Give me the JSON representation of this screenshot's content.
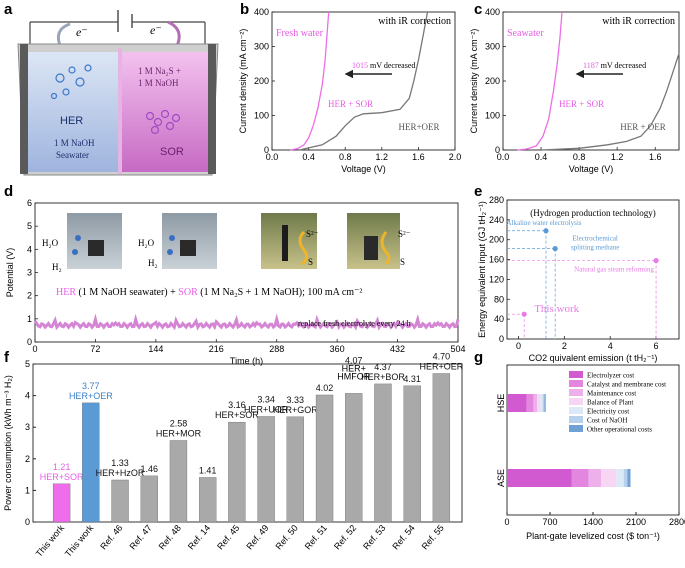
{
  "panel_labels": {
    "a": "a",
    "b": "b",
    "c": "c",
    "d": "d",
    "e": "e",
    "f": "f",
    "g": "g"
  },
  "panel_a": {
    "electron_left": "e⁻",
    "electron_right": "e⁻",
    "left_label": "HER",
    "left_sub1": "1 M NaOH",
    "left_sub2": "Seawater",
    "right_label": "SOR",
    "right_sub1": "1 M Na₂S +",
    "right_sub2": "1 M NaOH",
    "colors": {
      "left": "#b8c8e6",
      "right": "#d98fd6"
    }
  },
  "chart_data": [
    {
      "id": "b",
      "type": "line",
      "title": "",
      "annotation_top": "with iR correction",
      "legend": "Fresh water",
      "xlabel": "Voltage (V)",
      "ylabel": "Current density (mA cm⁻²)",
      "xlim": [
        0,
        2.0
      ],
      "ylim": [
        0,
        400
      ],
      "xticks": [
        "0.0",
        "0.4",
        "0.8",
        "1.2",
        "1.6",
        "2.0"
      ],
      "yticks": [
        "0",
        "100",
        "200",
        "300",
        "400"
      ],
      "arrow_text_value": "1015",
      "arrow_text_suffix": " mV decreased",
      "series": [
        {
          "name": "HER + SOR",
          "color": "#ee6de8",
          "x": [
            0.2,
            0.28,
            0.35,
            0.4,
            0.45,
            0.5,
            0.55,
            0.58,
            0.6,
            0.62
          ],
          "y": [
            0,
            4,
            15,
            35,
            70,
            120,
            190,
            260,
            330,
            400
          ]
        },
        {
          "name": "HER+OER",
          "color": "#777777",
          "x": [
            0.3,
            0.55,
            0.7,
            0.8,
            0.9,
            1.0,
            1.2,
            1.4,
            1.5,
            1.55,
            1.6,
            1.65,
            1.7
          ],
          "y": [
            0,
            15,
            40,
            70,
            95,
            105,
            108,
            118,
            150,
            200,
            260,
            330,
            400
          ]
        }
      ]
    },
    {
      "id": "c",
      "type": "line",
      "title": "",
      "annotation_top": "with iR correction",
      "legend": "Seawater",
      "xlabel": "Voltage (V)",
      "ylabel": "Current density (mA cm⁻²)",
      "xlim": [
        0,
        1.85
      ],
      "ylim": [
        0,
        400
      ],
      "xticks": [
        "0.0",
        "0.4",
        "0.8",
        "1.2",
        "1.6"
      ],
      "yticks": [
        "0",
        "100",
        "200",
        "300",
        "400"
      ],
      "arrow_text_value": "1187",
      "arrow_text_suffix": " mV decreased",
      "series": [
        {
          "name": "HER + SOR",
          "color": "#ee6de8",
          "x": [
            0.15,
            0.25,
            0.35,
            0.42,
            0.48,
            0.53,
            0.57,
            0.6,
            0.62
          ],
          "y": [
            0,
            3,
            12,
            40,
            90,
            170,
            250,
            330,
            400
          ]
        },
        {
          "name": "HER + OER",
          "color": "#777777",
          "x": [
            0.4,
            0.8,
            1.1,
            1.3,
            1.45,
            1.55,
            1.65,
            1.72,
            1.78,
            1.85
          ],
          "y": [
            0,
            5,
            15,
            25,
            40,
            70,
            120,
            170,
            220,
            280
          ]
        }
      ]
    },
    {
      "id": "d",
      "type": "line",
      "xlabel": "Time (h)",
      "ylabel": "Potential (V)",
      "xlim": [
        0,
        504
      ],
      "ylim": [
        0,
        6
      ],
      "xticks": [
        "0",
        "72",
        "144",
        "216",
        "288",
        "360",
        "432",
        "504"
      ],
      "yticks": [
        "0",
        "1",
        "2",
        "3",
        "4",
        "5",
        "6"
      ],
      "caption_her": "HER",
      "caption_her_detail": " (1 M NaOH seawater) + ",
      "caption_sor": "SOR",
      "caption_sor_detail": " (1 M Na₂S + 1 M NaOH); 100 mA cm⁻²",
      "note": "replace fresh electrolyte every 24 h",
      "photo_labels": {
        "h2o_1": "H₂O",
        "h2_1": "H₂",
        "h2o_2": "H₂O",
        "s2_1": "S²⁻",
        "s_1": "S",
        "s2_2": "S²⁻",
        "s_2": "S"
      },
      "series": [
        {
          "name": "potential",
          "color": "#d486d4",
          "level": 0.72
        }
      ]
    },
    {
      "id": "e",
      "type": "scatter",
      "title": "(Hydrogen production technology)",
      "xlabel": "CO2 quivalent emission (t tH₂⁻¹)",
      "ylabel": "Energy equivalent input (GJ tH₂⁻¹)",
      "xlim": [
        -0.5,
        7
      ],
      "ylim": [
        0,
        280
      ],
      "xticks": [
        "0",
        "2",
        "4",
        "6"
      ],
      "yticks": [
        "0",
        "40",
        "80",
        "120",
        "160",
        "200",
        "240",
        "280"
      ],
      "points": [
        {
          "label": "Alkaline water electrolysis",
          "x": 1.2,
          "y": 218,
          "color": "#5b9bd5"
        },
        {
          "label": "Electrochemical splitting methane",
          "x": 1.6,
          "y": 182,
          "color": "#5b9bd5"
        },
        {
          "label": "Natural gas steam reforming",
          "x": 6.0,
          "y": 158,
          "color": "#e97be6"
        },
        {
          "label": "This work",
          "x": 0.25,
          "y": 50,
          "color": "#e97be6"
        }
      ]
    },
    {
      "id": "f",
      "type": "bar",
      "ylabel": "Power consumption (kWh m⁻³ H₂)",
      "ylim": [
        0,
        5
      ],
      "yticks": [
        "0",
        "1",
        "2",
        "3",
        "4",
        "5"
      ],
      "categories": [
        "This work",
        "This work",
        "Ref. 46",
        "Ref. 47",
        "Ref. 48",
        "Ref. 14",
        "Ref. 45",
        "Ref. 49",
        "Ref. 50",
        "Ref. 51",
        "Ref. 52",
        "Ref. 53",
        "Ref. 54",
        "Ref. 55"
      ],
      "values": [
        1.21,
        3.77,
        1.33,
        1.46,
        2.58,
        1.41,
        3.16,
        3.34,
        3.33,
        4.02,
        4.07,
        4.37,
        4.31,
        4.7
      ],
      "value_labels": [
        "1.21",
        "3.77",
        "1.33",
        "1.46",
        "2.58",
        "1.41",
        "3.16",
        "3.34",
        "3.33",
        "4.02",
        "4.07",
        "4.37",
        "4.31",
        "4.70"
      ],
      "bar_labels": [
        "HER+SOR",
        "HER+OER",
        "HER+HzOR",
        "",
        "HER+MOR",
        "",
        "HER+SOR",
        "HER+UOR",
        "HER+GOR",
        "",
        "HER+HMFOR",
        "HER+BOR",
        "",
        "HER+OER"
      ],
      "colors": {
        "this_sor": "#ef6cea",
        "this_oer": "#5b9bd5",
        "ref": "#a9a9a9"
      }
    },
    {
      "id": "g",
      "type": "bar",
      "orientation": "horizontal",
      "xlabel": "Plant-gate levelized cost ($ ton⁻¹)",
      "xlim": [
        0,
        2800
      ],
      "xticks": [
        "0",
        "700",
        "1400",
        "2100",
        "2800"
      ],
      "categories": [
        "HSE",
        "ASE"
      ],
      "legend": [
        "Electrolyzer cost",
        "Catalyst and membrane cost",
        "Maintenance cost",
        "Balance of Plant",
        "Electricity cost",
        "Cost of NaOH",
        "Other operational costs"
      ],
      "legend_colors": [
        "#d25ad0",
        "#e286df",
        "#eeb0ea",
        "#f7d6f4",
        "#dce9f7",
        "#b7d0ec",
        "#6fa1d4"
      ],
      "series": [
        {
          "name": "Electrolyzer cost",
          "values": [
            320,
            1050
          ]
        },
        {
          "name": "Catalyst and membrane cost",
          "values": [
            110,
            280
          ]
        },
        {
          "name": "Maintenance cost",
          "values": [
            60,
            200
          ]
        },
        {
          "name": "Balance of Plant",
          "values": [
            50,
            250
          ]
        },
        {
          "name": "Electricity cost",
          "values": [
            40,
            120
          ]
        },
        {
          "name": "Cost of NaOH",
          "values": [
            30,
            60
          ]
        },
        {
          "name": "Other operational costs",
          "values": [
            20,
            50
          ]
        }
      ]
    }
  ]
}
